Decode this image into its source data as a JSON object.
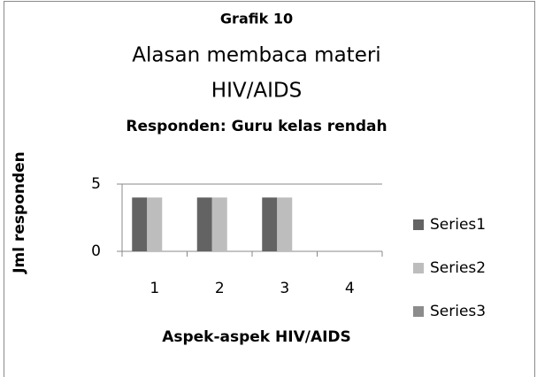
{
  "chart_data": {
    "type": "bar",
    "title_lines": [
      "Grafik 10",
      "Alasan membaca materi",
      "HIV/AIDS",
      "Responden: Guru kelas rendah"
    ],
    "xlabel": "Aspek-aspek HIV/AIDS",
    "ylabel": "Jml responden",
    "categories": [
      "1",
      "2",
      "3",
      "4"
    ],
    "series": [
      {
        "name": "Series1",
        "color": "#636363",
        "values": [
          4,
          4,
          4,
          0
        ]
      },
      {
        "name": "Series2",
        "color": "#bdbdbd",
        "values": [
          4,
          4,
          4,
          0
        ]
      },
      {
        "name": "Series3",
        "color": "#8c8c8c",
        "values": [
          0,
          0,
          0,
          0
        ]
      }
    ],
    "ylim": [
      0,
      5
    ],
    "yticks": [
      0,
      5
    ],
    "grid": true,
    "legend": "right"
  }
}
